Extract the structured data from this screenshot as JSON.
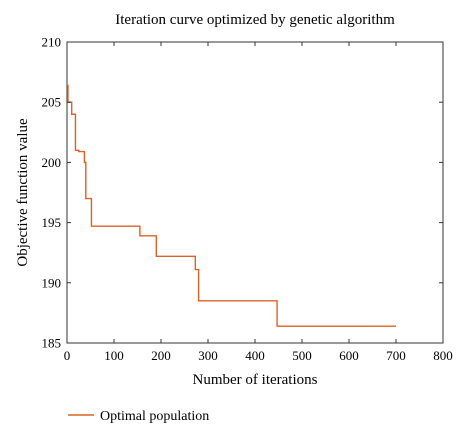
{
  "chart_data": {
    "type": "line",
    "title": "Iteration curve optimized by genetic algorithm",
    "xlabel": "Number of iterations",
    "ylabel": "Objective function value",
    "xlim": [
      0,
      800
    ],
    "ylim": [
      185,
      210
    ],
    "xticks": [
      0,
      100,
      200,
      300,
      400,
      500,
      600,
      700,
      800
    ],
    "yticks": [
      185,
      190,
      195,
      200,
      205,
      210
    ],
    "grid": false,
    "legend_position": "bottom-left, below plot",
    "series": [
      {
        "name": "Optimal population",
        "color": "#d9622b",
        "style": "step",
        "x": [
          0,
          2,
          2,
          10,
          10,
          18,
          18,
          25,
          25,
          37,
          37,
          40,
          40,
          42,
          42,
          52,
          52,
          155,
          155,
          190,
          190,
          273,
          273,
          280,
          280,
          447,
          447,
          700
        ],
        "y": [
          206.4,
          206.4,
          205.0,
          205.0,
          204.0,
          204.0,
          201.0,
          201.0,
          200.9,
          200.9,
          200.0,
          200.0,
          197.0,
          197.0,
          197.0,
          197.0,
          194.7,
          194.7,
          193.9,
          193.9,
          192.2,
          192.2,
          191.1,
          191.1,
          188.5,
          188.5,
          186.4,
          186.4
        ]
      }
    ]
  }
}
